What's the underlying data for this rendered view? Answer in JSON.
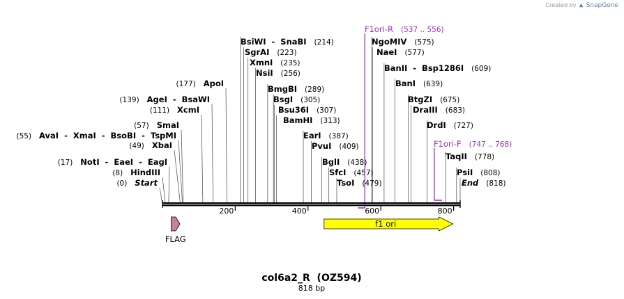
{
  "credit": {
    "prefix": "Created by",
    "brand": "SnapGene"
  },
  "title": "col6a2_R  (OZ594)",
  "length": "818 bp",
  "sequence_length": 818,
  "colors": {
    "enzyme": "#000000",
    "primer": "#9b30c8",
    "f1ori": "#ffff00",
    "flag": "#c77f9b",
    "backbone": "#000000"
  },
  "sites": [
    {
      "name": "Start",
      "pos": 0,
      "label": "(0)",
      "italic": true
    },
    {
      "name": "HindIII",
      "pos": 8,
      "label": "(8)"
    },
    {
      "name": "NotI  -  EaeI  -  EagI",
      "pos": 17,
      "label": "(17)"
    },
    {
      "name": "XbaI",
      "pos": 49,
      "label": "(49)"
    },
    {
      "name": "AvaI  -  XmaI  -  BsoBI  -  TspMI",
      "pos": 55,
      "label": "(55)"
    },
    {
      "name": "SmaI",
      "pos": 57,
      "label": "(57)"
    },
    {
      "name": "XcmI",
      "pos": 111,
      "label": "(111)"
    },
    {
      "name": "AgeI  -  BsaWI",
      "pos": 139,
      "label": "(139)"
    },
    {
      "name": "ApoI",
      "pos": 177,
      "label": "(177)"
    },
    {
      "name": "BsiWI  -  SnaBI",
      "pos": 214,
      "label": "(214)"
    },
    {
      "name": "SgrAI",
      "pos": 223,
      "label": "(223)"
    },
    {
      "name": "XmnI",
      "pos": 235,
      "label": "(235)"
    },
    {
      "name": "NsiI",
      "pos": 256,
      "label": "(256)"
    },
    {
      "name": "BmgBI",
      "pos": 289,
      "label": "(289)"
    },
    {
      "name": "BsgI",
      "pos": 305,
      "label": "(305)"
    },
    {
      "name": "Bsu36I",
      "pos": 307,
      "label": "(307)"
    },
    {
      "name": "BamHI",
      "pos": 313,
      "label": "(313)"
    },
    {
      "name": "EarI",
      "pos": 387,
      "label": "(387)"
    },
    {
      "name": "PvuI",
      "pos": 409,
      "label": "(409)"
    },
    {
      "name": "BglI",
      "pos": 438,
      "label": "(438)"
    },
    {
      "name": "SfcI",
      "pos": 457,
      "label": "(457)"
    },
    {
      "name": "TsoI",
      "pos": 479,
      "label": "(479)"
    },
    {
      "name": "NgoMIV",
      "pos": 575,
      "label": "(575)"
    },
    {
      "name": "NaeI",
      "pos": 577,
      "label": "(577)"
    },
    {
      "name": "BanII  -  Bsp1286I",
      "pos": 609,
      "label": "(609)"
    },
    {
      "name": "BanI",
      "pos": 639,
      "label": "(639)"
    },
    {
      "name": "BtgZI",
      "pos": 675,
      "label": "(675)"
    },
    {
      "name": "DraIII",
      "pos": 683,
      "label": "(683)"
    },
    {
      "name": "DrdI",
      "pos": 727,
      "label": "(727)"
    },
    {
      "name": "TaqII",
      "pos": 778,
      "label": "(778)"
    },
    {
      "name": "PsiI",
      "pos": 808,
      "label": "(808)"
    },
    {
      "name": "End",
      "pos": 818,
      "label": "(818)",
      "italic": true
    }
  ],
  "primers": [
    {
      "name": "F1ori-R",
      "range": "(537 .. 556)",
      "start": 537,
      "end": 556,
      "direction": "reverse"
    },
    {
      "name": "F1ori-F",
      "range": "(747 .. 768)",
      "start": 747,
      "end": 768,
      "direction": "forward"
    }
  ],
  "ruler": {
    "ticks": [
      200,
      400,
      600,
      800
    ],
    "labels": [
      "200",
      "400",
      "600",
      "800"
    ]
  },
  "features": [
    {
      "name": "f1 ori",
      "start": 444,
      "end": 798,
      "direction": "forward",
      "color": "#ffff00",
      "label_inside": true
    },
    {
      "name": "FLAG",
      "start": 24,
      "end": 48,
      "direction": "forward",
      "color": "#c77f9b",
      "label_inside": false
    }
  ]
}
